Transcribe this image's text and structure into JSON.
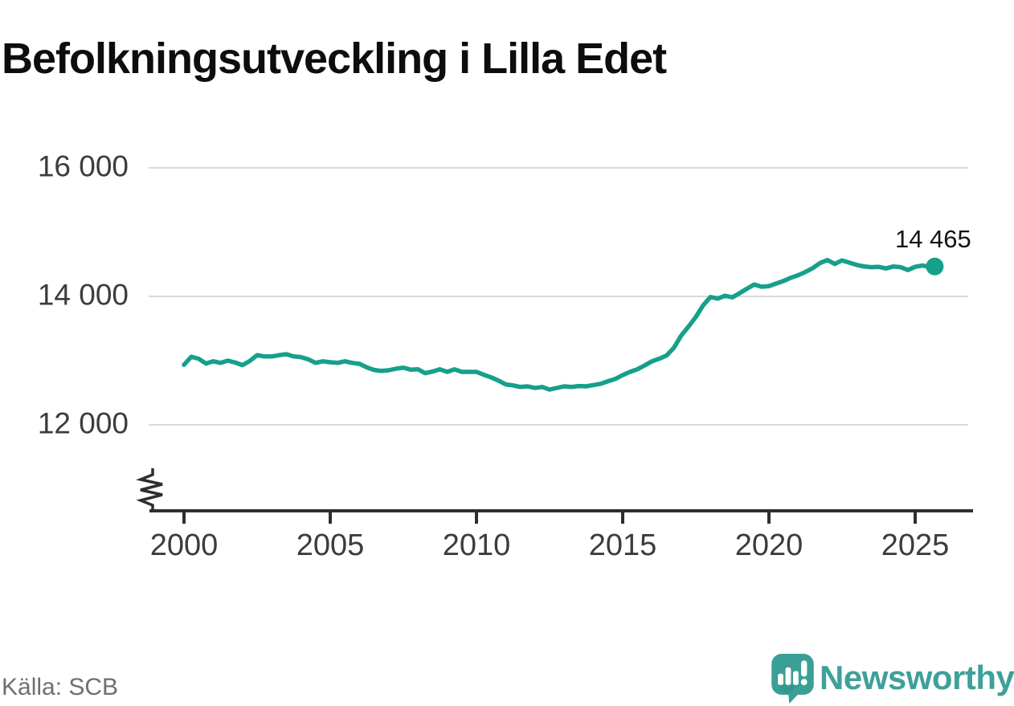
{
  "title": "Befolkningsutveckling i Lilla Edet",
  "source": "Källa: SCB",
  "branding": {
    "wordmark": "Newsworthy"
  },
  "colors": {
    "line": "#16a08c",
    "grid": "#d9d9d9",
    "axis": "#2e2e2e",
    "title_text": "#0d0d0d",
    "tick_text": "#3c3c3c",
    "source_text": "#6f6f6f",
    "brand_teal": "#3fa099"
  },
  "chart_data": {
    "type": "line",
    "title": "Befolkningsutveckling i Lilla Edet",
    "series_name": "Befolkning",
    "xlabel": "",
    "ylabel": "",
    "grid": "horizontal",
    "legend": "none",
    "axis_break": true,
    "xlim": [
      1998.8,
      2026.5
    ],
    "ylim_visible": [
      11450,
      16450
    ],
    "yticks": [
      {
        "value": 12000,
        "label": "12 000"
      },
      {
        "value": 14000,
        "label": "14 000"
      },
      {
        "value": 16000,
        "label": "16 000"
      }
    ],
    "xticks": [
      {
        "value": 2000,
        "label": "2000"
      },
      {
        "value": 2005,
        "label": "2005"
      },
      {
        "value": 2010,
        "label": "2010"
      },
      {
        "value": 2015,
        "label": "2015"
      },
      {
        "value": 2020,
        "label": "2020"
      },
      {
        "value": 2025,
        "label": "2025"
      }
    ],
    "x": [
      2000.0,
      2000.25,
      2000.5,
      2000.75,
      2001.0,
      2001.25,
      2001.5,
      2001.75,
      2002.0,
      2002.25,
      2002.5,
      2002.75,
      2003.0,
      2003.25,
      2003.5,
      2003.75,
      2004.0,
      2004.25,
      2004.5,
      2004.75,
      2005.0,
      2005.25,
      2005.5,
      2005.75,
      2006.0,
      2006.25,
      2006.5,
      2006.75,
      2007.0,
      2007.25,
      2007.5,
      2007.75,
      2008.0,
      2008.25,
      2008.5,
      2008.75,
      2009.0,
      2009.25,
      2009.5,
      2009.75,
      2010.0,
      2010.25,
      2010.5,
      2010.75,
      2011.0,
      2011.25,
      2011.5,
      2011.75,
      2012.0,
      2012.25,
      2012.5,
      2012.75,
      2013.0,
      2013.25,
      2013.5,
      2013.75,
      2014.0,
      2014.25,
      2014.5,
      2014.75,
      2015.0,
      2015.25,
      2015.5,
      2015.75,
      2016.0,
      2016.25,
      2016.5,
      2016.75,
      2017.0,
      2017.25,
      2017.5,
      2017.75,
      2018.0,
      2018.25,
      2018.5,
      2018.75,
      2019.0,
      2019.25,
      2019.5,
      2019.75,
      2020.0,
      2020.25,
      2020.5,
      2020.75,
      2021.0,
      2021.25,
      2021.5,
      2021.75,
      2022.0,
      2022.25,
      2022.5,
      2022.75,
      2023.0,
      2023.25,
      2023.5,
      2023.75,
      2024.0,
      2024.25,
      2024.5,
      2024.75,
      2025.0,
      2025.25,
      2025.5,
      2025.67
    ],
    "values": [
      12935,
      13060,
      13030,
      12955,
      12990,
      12965,
      13000,
      12970,
      12930,
      12995,
      13085,
      13065,
      13065,
      13085,
      13100,
      13065,
      13055,
      13020,
      12965,
      12990,
      12975,
      12965,
      12990,
      12965,
      12950,
      12895,
      12855,
      12840,
      12850,
      12875,
      12890,
      12860,
      12865,
      12805,
      12830,
      12865,
      12825,
      12865,
      12825,
      12825,
      12825,
      12780,
      12740,
      12690,
      12630,
      12615,
      12590,
      12600,
      12575,
      12590,
      12550,
      12575,
      12600,
      12590,
      12605,
      12600,
      12620,
      12640,
      12680,
      12715,
      12775,
      12825,
      12865,
      12925,
      12990,
      13030,
      13080,
      13200,
      13390,
      13530,
      13680,
      13860,
      13990,
      13965,
      14010,
      13985,
      14050,
      14120,
      14185,
      14150,
      14160,
      14200,
      14240,
      14290,
      14330,
      14380,
      14440,
      14520,
      14565,
      14505,
      14560,
      14525,
      14490,
      14465,
      14455,
      14460,
      14435,
      14465,
      14455,
      14410,
      14460,
      14480,
      14455,
      14465
    ],
    "end_point": {
      "x": 2025.67,
      "value": 14465,
      "label": "14 465"
    }
  }
}
